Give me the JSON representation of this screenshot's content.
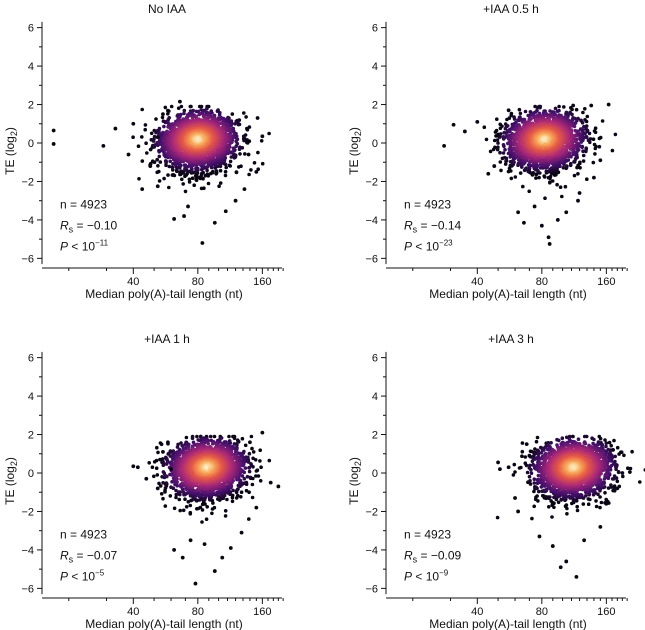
{
  "chart_data": [
    {
      "type": "scatter",
      "title": "No IAA",
      "xlabel": "Median poly(A)-tail length (nt)",
      "ylabel_main": "TE (log",
      "ylabel_sub": "2",
      "ylabel_close": ")",
      "xscale": "log",
      "xlim": [
        15,
        220
      ],
      "ylim": [
        -6.5,
        6.5
      ],
      "xticks_labeled": [
        "40",
        "80",
        "160"
      ],
      "yticks": [
        "-6",
        "-4",
        "-2",
        "0",
        "2",
        "4",
        "6"
      ],
      "stats": {
        "n": "n = 4923",
        "rs_sym": "R",
        "rs_sub": "s",
        "rs_val": " = −0.10",
        "p_sym": "P",
        "p_base": " < 10",
        "p_exp": "−11"
      },
      "density_center": {
        "x": 80,
        "y": 0.2
      },
      "outliers": [
        {
          "x": 17,
          "y": 0.65
        },
        {
          "x": 17,
          "y": -0.05
        },
        {
          "x": 29,
          "y": -0.15
        },
        {
          "x": 33,
          "y": 0.75
        },
        {
          "x": 38,
          "y": -0.6
        },
        {
          "x": 40,
          "y": 1.0
        },
        {
          "x": 44,
          "y": -2.4
        },
        {
          "x": 52,
          "y": -2.25
        },
        {
          "x": 55,
          "y": 1.5
        },
        {
          "x": 62,
          "y": -3.95
        },
        {
          "x": 66,
          "y": 2.15
        },
        {
          "x": 69,
          "y": -3.8
        },
        {
          "x": 72,
          "y": -3.3
        },
        {
          "x": 84,
          "y": -5.2
        },
        {
          "x": 96,
          "y": -4.15
        },
        {
          "x": 108,
          "y": -3.55
        },
        {
          "x": 120,
          "y": -3.0
        },
        {
          "x": 132,
          "y": -2.4
        },
        {
          "x": 150,
          "y": -1.5
        },
        {
          "x": 160,
          "y": 0.35
        },
        {
          "x": 152,
          "y": 1.3
        },
        {
          "x": 52,
          "y": 0.3
        },
        {
          "x": 48,
          "y": -1.2
        },
        {
          "x": 138,
          "y": -0.6
        }
      ]
    },
    {
      "type": "scatter",
      "title": "+IAA 0.5 h",
      "xlabel": "Median poly(A)-tail length (nt)",
      "ylabel_main": "TE (log",
      "ylabel_sub": "2",
      "ylabel_close": ")",
      "xscale": "log",
      "xlim": [
        15,
        220
      ],
      "ylim": [
        -6.5,
        6.5
      ],
      "xticks_labeled": [
        "40",
        "80",
        "160"
      ],
      "yticks": [
        "-6",
        "-4",
        "-2",
        "0",
        "2",
        "4",
        "6"
      ],
      "stats": {
        "n": "n = 4923",
        "rs_sym": "R",
        "rs_sub": "s",
        "rs_val": " = −0.14",
        "p_sym": "P",
        "p_base": " < 10",
        "p_exp": "−23"
      },
      "density_center": {
        "x": 82,
        "y": 0.2
      },
      "outliers": [
        {
          "x": 28,
          "y": -0.15
        },
        {
          "x": 31,
          "y": 0.95
        },
        {
          "x": 35,
          "y": 0.6
        },
        {
          "x": 40,
          "y": 1.1
        },
        {
          "x": 45,
          "y": -1.6
        },
        {
          "x": 48,
          "y": -1.2
        },
        {
          "x": 56,
          "y": 1.7
        },
        {
          "x": 62,
          "y": -3.6
        },
        {
          "x": 66,
          "y": -4.15
        },
        {
          "x": 74,
          "y": -3.3
        },
        {
          "x": 80,
          "y": -4.3
        },
        {
          "x": 86,
          "y": -4.9
        },
        {
          "x": 87,
          "y": -5.25
        },
        {
          "x": 95,
          "y": -4.0
        },
        {
          "x": 104,
          "y": -3.6
        },
        {
          "x": 118,
          "y": -3.0
        },
        {
          "x": 136,
          "y": 1.95
        },
        {
          "x": 164,
          "y": 2.0
        },
        {
          "x": 150,
          "y": -0.9
        },
        {
          "x": 140,
          "y": -1.8
        },
        {
          "x": 112,
          "y": 1.95
        },
        {
          "x": 120,
          "y": -2.6
        },
        {
          "x": 50,
          "y": 0.4
        }
      ]
    },
    {
      "type": "scatter",
      "title": "+IAA 1 h",
      "xlabel": "Median poly(A)-tail length (nt)",
      "ylabel_main": "TE (log",
      "ylabel_sub": "2",
      "ylabel_close": ")",
      "xscale": "log",
      "xlim": [
        15,
        220
      ],
      "ylim": [
        -6.5,
        6.5
      ],
      "xticks_labeled": [
        "40",
        "80",
        "160"
      ],
      "yticks": [
        "-6",
        "-4",
        "-2",
        "0",
        "2",
        "4",
        "6"
      ],
      "stats": {
        "n": "n = 4923",
        "rs_sym": "R",
        "rs_sub": "s",
        "rs_val": " = −0.07",
        "p_sym": "P",
        "p_base": " < 10",
        "p_exp": "−5"
      },
      "density_center": {
        "x": 88,
        "y": 0.3
      },
      "outliers": [
        {
          "x": 40,
          "y": 0.35
        },
        {
          "x": 42,
          "y": 0.3
        },
        {
          "x": 46,
          "y": -0.3
        },
        {
          "x": 52,
          "y": -0.8
        },
        {
          "x": 55,
          "y": 1.1
        },
        {
          "x": 58,
          "y": 1.6
        },
        {
          "x": 62,
          "y": -4.0
        },
        {
          "x": 68,
          "y": -4.4
        },
        {
          "x": 74,
          "y": -3.5
        },
        {
          "x": 78,
          "y": -5.75
        },
        {
          "x": 86,
          "y": -3.7
        },
        {
          "x": 96,
          "y": -5.1
        },
        {
          "x": 104,
          "y": -4.4
        },
        {
          "x": 114,
          "y": -3.9
        },
        {
          "x": 128,
          "y": -3.1
        },
        {
          "x": 160,
          "y": 2.1
        },
        {
          "x": 175,
          "y": -0.5
        },
        {
          "x": 190,
          "y": -0.7
        },
        {
          "x": 150,
          "y": -1.8
        },
        {
          "x": 60,
          "y": 0.2
        },
        {
          "x": 140,
          "y": 1.6
        }
      ]
    },
    {
      "type": "scatter",
      "title": "+IAA 3 h",
      "xlabel": "Median poly(A)-tail length (nt)",
      "ylabel_main": "TE (log",
      "ylabel_sub": "2",
      "ylabel_close": ")",
      "xscale": "log",
      "xlim": [
        15,
        220
      ],
      "ylim": [
        -6.5,
        6.5
      ],
      "xticks_labeled": [
        "40",
        "80",
        "160"
      ],
      "yticks": [
        "-6",
        "-4",
        "-2",
        "0",
        "2",
        "4",
        "6"
      ],
      "stats": {
        "n": "n = 4923",
        "rs_sym": "R",
        "rs_sub": "s",
        "rs_val": " = −0.09",
        "p_sym": "P",
        "p_base": " < 10",
        "p_exp": "−9"
      },
      "density_center": {
        "x": 112,
        "y": 0.3
      },
      "outliers": [
        {
          "x": 50,
          "y": 0.55
        },
        {
          "x": 51,
          "y": 0.2
        },
        {
          "x": 56,
          "y": 0.3
        },
        {
          "x": 60,
          "y": -1.3
        },
        {
          "x": 62,
          "y": -2.0
        },
        {
          "x": 68,
          "y": 1.5
        },
        {
          "x": 78,
          "y": -3.3
        },
        {
          "x": 90,
          "y": -3.8
        },
        {
          "x": 98,
          "y": -4.9
        },
        {
          "x": 104,
          "y": -4.6
        },
        {
          "x": 116,
          "y": -5.4
        },
        {
          "x": 126,
          "y": -3.5
        },
        {
          "x": 150,
          "y": -2.8
        },
        {
          "x": 190,
          "y": 0.0
        },
        {
          "x": 206,
          "y": 0.05
        },
        {
          "x": 172,
          "y": 1.2
        },
        {
          "x": 160,
          "y": -1.6
        },
        {
          "x": 70,
          "y": 0.9
        },
        {
          "x": 180,
          "y": -0.8
        }
      ]
    }
  ]
}
